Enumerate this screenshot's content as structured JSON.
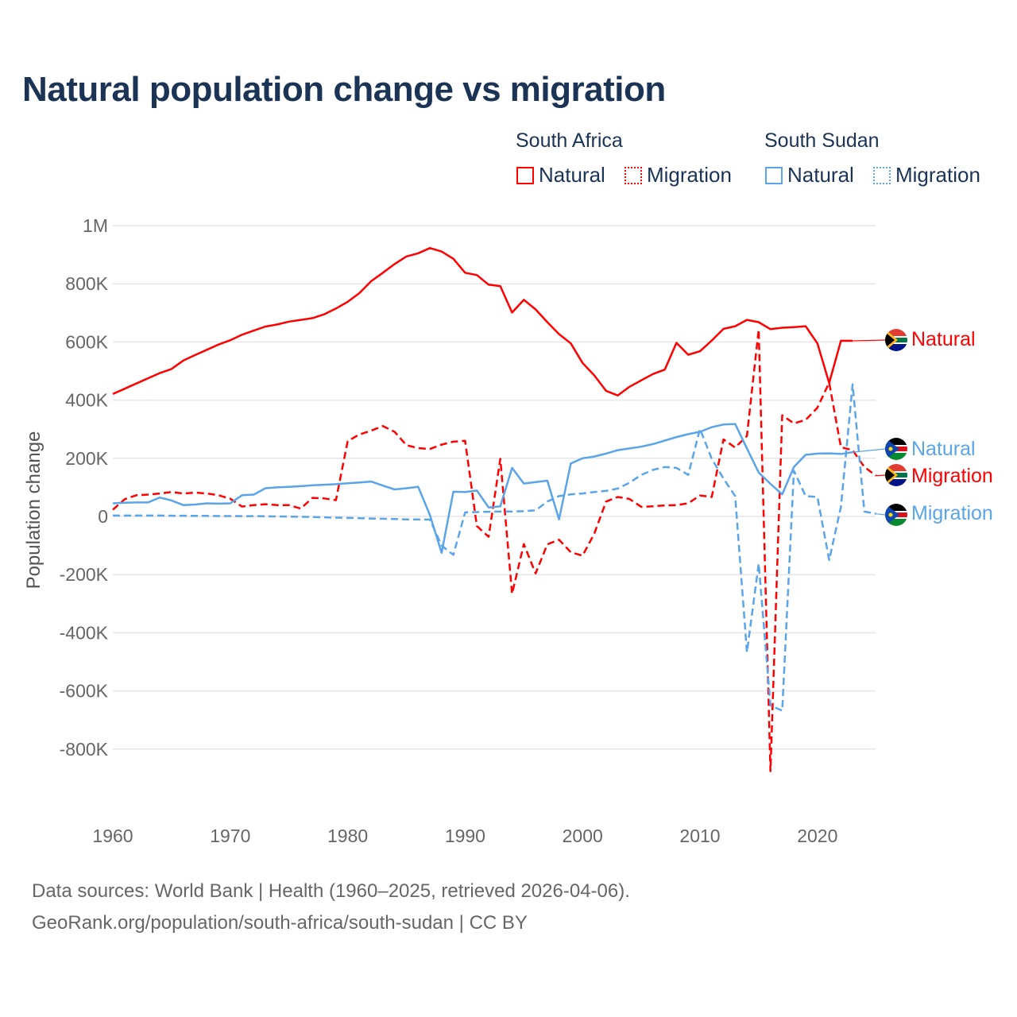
{
  "title": "Natural population change vs migration",
  "legend": {
    "groups": [
      {
        "name": "South Africa",
        "items": [
          {
            "label": "Natural",
            "style": "solid",
            "color": "#ff0000"
          },
          {
            "label": "Migration",
            "style": "dotted",
            "color": "#ff0000"
          }
        ]
      },
      {
        "name": "South Sudan",
        "items": [
          {
            "label": "Natural",
            "style": "solid",
            "color": "#5aa4ea"
          },
          {
            "label": "Migration",
            "style": "dotted",
            "color": "#5aa4ea"
          }
        ]
      }
    ]
  },
  "source_line1": "Data sources: World Bank | Health (1960–2025, retrieved 2026-04-06).",
  "source_line2": "GeoRank.org/population/south-africa/south-sudan | CC BY",
  "chart_data": {
    "type": "line",
    "title": "Natural population change vs migration",
    "xlabel": "",
    "ylabel": "Population change",
    "xlim": [
      1960,
      2025
    ],
    "ylim": [
      -1000000,
      1000000
    ],
    "yticks": [
      1000000,
      800000,
      600000,
      400000,
      200000,
      0,
      -200000,
      -400000,
      -600000,
      -800000
    ],
    "ytick_labels": [
      "1M",
      "800K",
      "600K",
      "400K",
      "200K",
      "0",
      "-200K",
      "-400K",
      "-600K",
      "-800K"
    ],
    "xticks": [
      1960,
      1970,
      1980,
      1990,
      2000,
      2010,
      2020
    ],
    "xtick_labels": [
      "1960",
      "1970",
      "1980",
      "1990",
      "2000",
      "2010",
      "2020"
    ],
    "grid": true,
    "legend_position": "top-right",
    "series": [
      {
        "name": "South Africa Natural",
        "end_label": "Natural",
        "color": "#ff0000",
        "dash": false,
        "start": 1960,
        "values": [
          421000,
          439000,
          457000,
          475000,
          493000,
          507000,
          536000,
          555000,
          573000,
          591000,
          606000,
          625000,
          639000,
          653000,
          660000,
          670000,
          676000,
          682000,
          695000,
          715000,
          738000,
          768000,
          809000,
          838000,
          868000,
          894000,
          905000,
          923000,
          911000,
          886000,
          838000,
          830000,
          797000,
          792000,
          701000,
          745000,
          712000,
          668000,
          627000,
          595000,
          528000,
          485000,
          432000,
          416000,
          446000,
          468000,
          490000,
          505000,
          597000,
          556000,
          568000,
          605000,
          645000,
          654000,
          676000,
          668000,
          644000,
          649000,
          651000,
          654000,
          595000,
          459000,
          604000,
          604000
        ]
      },
      {
        "name": "South Africa Migration",
        "end_label": "Migration",
        "color": "#ff0000",
        "dash": true,
        "start": 1960,
        "values": [
          23000,
          59000,
          73000,
          75000,
          79000,
          84000,
          79000,
          82000,
          79000,
          73000,
          61000,
          34000,
          39000,
          42000,
          39000,
          39000,
          27000,
          64000,
          62000,
          56000,
          259000,
          282000,
          295000,
          311000,
          291000,
          245000,
          235000,
          232000,
          247000,
          257000,
          260000,
          -33000,
          -70000,
          198000,
          -266000,
          -95000,
          -196000,
          -96000,
          -80000,
          -123000,
          -135000,
          -59000,
          51000,
          67000,
          60000,
          33000,
          35000,
          38000,
          39000,
          45000,
          72000,
          67000,
          265000,
          237000,
          277000,
          643000,
          -876000,
          348000,
          320000,
          332000,
          374000,
          460000,
          238000,
          228000,
          170000,
          140000
        ]
      },
      {
        "name": "South Sudan Natural",
        "end_label": "Natural",
        "color": "#5aa4ea",
        "dash": false,
        "start": 1960,
        "values": [
          45000,
          47000,
          48000,
          48000,
          65000,
          55000,
          39000,
          41000,
          45000,
          44000,
          45000,
          73000,
          75000,
          97000,
          100000,
          102000,
          104000,
          107000,
          109000,
          111000,
          114000,
          117000,
          120000,
          106000,
          93000,
          97000,
          102000,
          5000,
          -125000,
          85000,
          84000,
          89000,
          31000,
          35000,
          167000,
          113000,
          118000,
          123000,
          -10000,
          182000,
          200000,
          206000,
          216000,
          228000,
          234000,
          240000,
          249000,
          261000,
          273000,
          283000,
          291000,
          307000,
          316000,
          318000,
          234000,
          151000,
          112000,
          76000,
          170000,
          212000,
          216000,
          217000,
          215000,
          221000
        ]
      },
      {
        "name": "South Sudan Migration",
        "end_label": "Migration",
        "color": "#5aa4ea",
        "dash": true,
        "start": 1960,
        "values": [
          3000,
          3000,
          3000,
          3000,
          3000,
          2500,
          2500,
          2000,
          2000,
          1500,
          1500,
          1000,
          1000,
          500,
          0,
          -500,
          -1000,
          -2000,
          -3000,
          -4000,
          -5000,
          -6000,
          -7000,
          -8000,
          -9000,
          -10000,
          -10500,
          -11000,
          -100000,
          -132000,
          14000,
          15000,
          16000,
          17000,
          17000,
          18000,
          21000,
          51000,
          70000,
          76000,
          79000,
          84000,
          88000,
          96000,
          116000,
          143000,
          160000,
          170000,
          167000,
          143000,
          301000,
          198000,
          130000,
          70000,
          -467000,
          -162000,
          -650000,
          -668000,
          157000,
          70000,
          67000,
          -150000,
          33000,
          454000,
          17000,
          9000
        ]
      }
    ]
  }
}
